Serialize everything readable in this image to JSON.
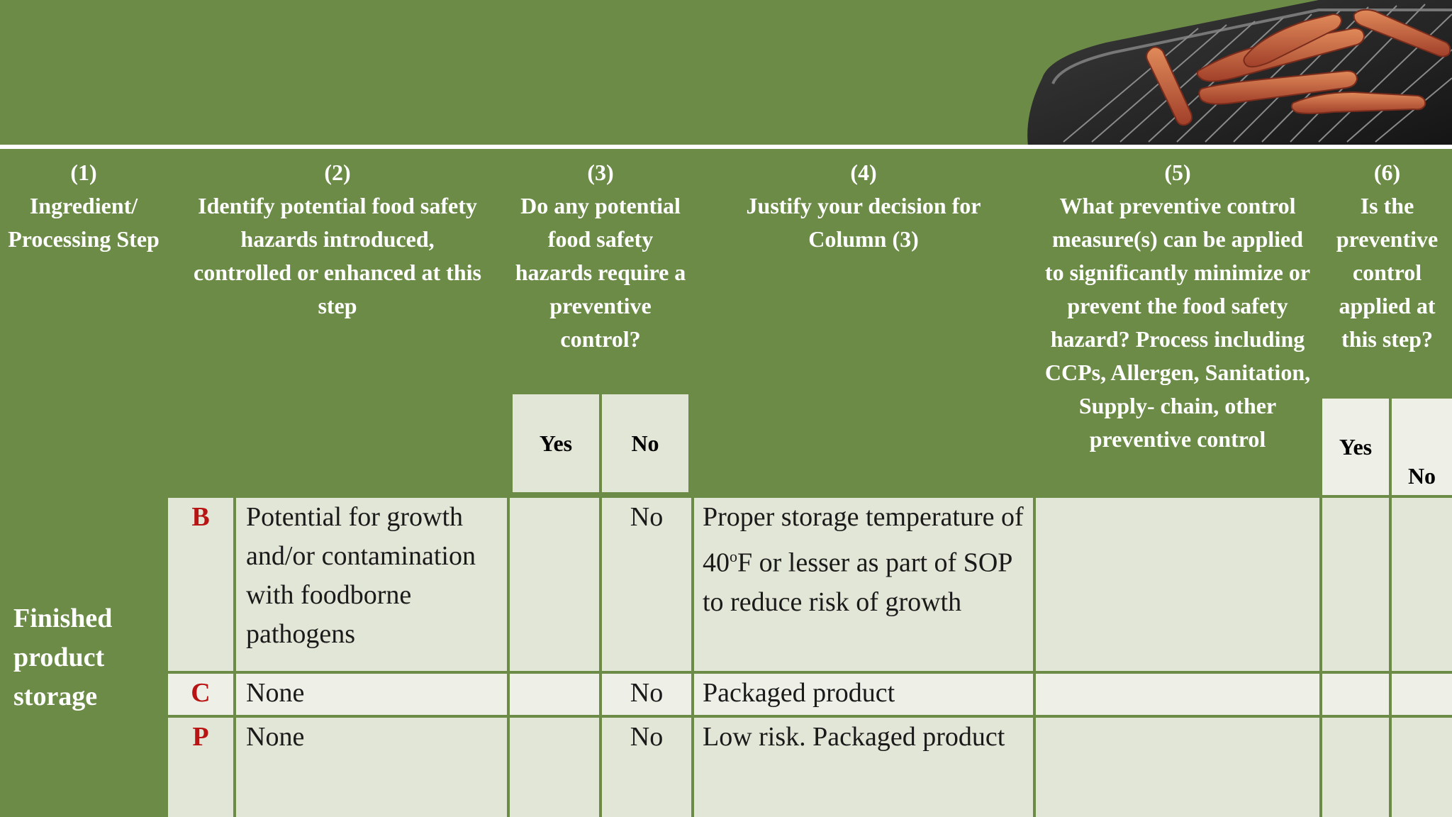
{
  "columns": [
    {
      "num": "(1)",
      "text": "Ingredient/ Processing Step"
    },
    {
      "num": "(2)",
      "text": "Identify potential food safety hazards introduced, controlled or enhanced at this step"
    },
    {
      "num": "(3)",
      "text": "Do any potential food safety hazards require a preventive control?"
    },
    {
      "num": "(4)",
      "text": "Justify your decision for Column (3)"
    },
    {
      "num": "(5)",
      "text": "What preventive control measure(s) can be applied to significantly minimize or prevent the food safety hazard? Process including CCPs, Allergen, Sanitation, Supply- chain, other preventive control"
    },
    {
      "num": "(6)",
      "text": "Is the preventive control applied at this step?"
    }
  ],
  "sub": {
    "yes3": "Yes",
    "no3": "No",
    "yes6": "Yes",
    "no6": "No"
  },
  "step": "Finished product storage",
  "rows": [
    {
      "code": "B",
      "hazard": "Potential for growth and/or contamination with foodborne pathogens",
      "yes": "",
      "no": "No",
      "justify_pre": "Proper storage temperature of 40",
      "justify_sup": "o",
      "justify_post": "F or lesser as part of SOP to reduce risk of growth"
    },
    {
      "code": "C",
      "hazard": "None",
      "yes": "",
      "no": "No",
      "justify": "Packaged product"
    },
    {
      "code": "P",
      "hazard": "None",
      "yes": "",
      "no": "No",
      "justify": "Low risk. Packaged product"
    }
  ],
  "colors": {
    "green": "#6c8b47",
    "body": "#e2e6d6",
    "code_red": "#b81414"
  }
}
